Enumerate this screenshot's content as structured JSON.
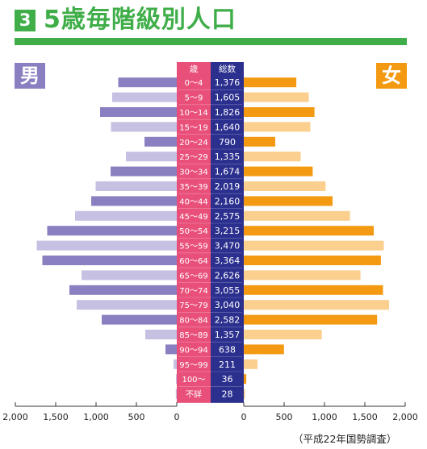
{
  "header": {
    "number": "3",
    "title": "5歳毎階級別人口"
  },
  "labels": {
    "male": "男",
    "female": "女",
    "age_header": "歳",
    "total_header": "総数"
  },
  "footnote": "（平成22年国勢調査）",
  "colors": {
    "green": "#3fae49",
    "male_dark": "#8a7fc0",
    "male_light": "#c6c0e2",
    "female_dark": "#f39a12",
    "female_light": "#fbcf8e",
    "age_column": "#e8507a",
    "total_column": "#2b2f8e"
  },
  "chart_data": {
    "type": "bar",
    "orientation": "horizontal",
    "layout": "population-pyramid",
    "categories": [
      "0～4",
      "5～9",
      "10～14",
      "15～19",
      "20～24",
      "25～29",
      "30～34",
      "35～39",
      "40～44",
      "45～49",
      "50～54",
      "55～59",
      "60～64",
      "65～69",
      "70～74",
      "75～79",
      "80～84",
      "85～89",
      "90～94",
      "95～99",
      "100～",
      "不詳"
    ],
    "totals": [
      "1,376",
      "1,605",
      "1,826",
      "1,640",
      "790",
      "1,335",
      "1,674",
      "2,019",
      "2,160",
      "2,575",
      "3,215",
      "3,470",
      "3,364",
      "2,626",
      "3,055",
      "3,040",
      "2,582",
      "1,357",
      "638",
      "211",
      "36",
      "28"
    ],
    "series": [
      {
        "name": "男",
        "values": [
          725,
          800,
          950,
          815,
          400,
          630,
          820,
          1005,
          1060,
          1260,
          1605,
          1735,
          1665,
          1180,
          1330,
          1240,
          930,
          390,
          140,
          40,
          5,
          12
        ]
      },
      {
        "name": "女",
        "values": [
          651,
          805,
          876,
          825,
          390,
          705,
          854,
          1014,
          1100,
          1315,
          1610,
          1735,
          1699,
          1446,
          1725,
          1800,
          1652,
          967,
          498,
          171,
          31,
          16
        ]
      }
    ],
    "xlim": [
      0,
      2000
    ],
    "x_ticks_left": [
      "2,000",
      "1,500",
      "1,000",
      "500",
      "0"
    ],
    "x_ticks_right": [
      "0",
      "500",
      "1,000",
      "1,500",
      "2,000"
    ]
  }
}
